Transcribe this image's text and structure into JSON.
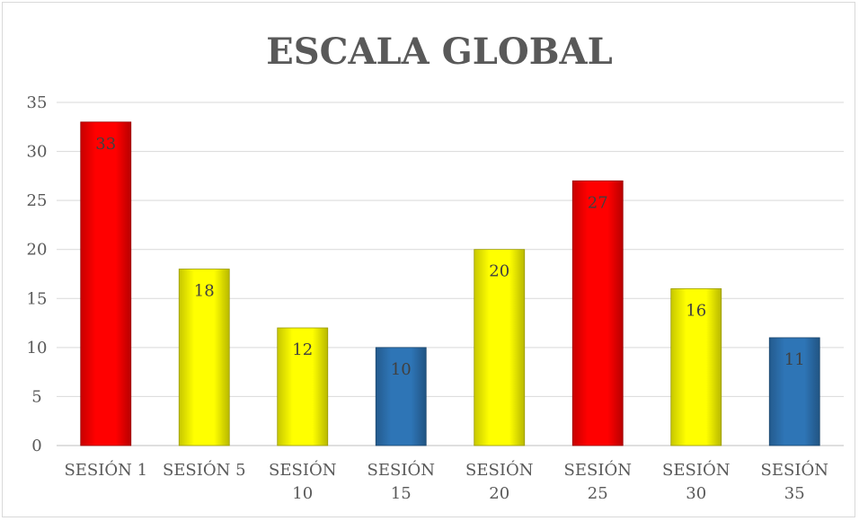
{
  "chart_data": {
    "type": "bar",
    "title": "ESCALA GLOBAL",
    "xlabel": "",
    "ylabel": "",
    "ylim": [
      0,
      35
    ],
    "yticks": [
      0,
      5,
      10,
      15,
      20,
      25,
      30,
      35
    ],
    "grid": true,
    "categories": [
      [
        "SESIÓN 1"
      ],
      [
        "SESIÓN 5"
      ],
      [
        "SESIÓN",
        "10"
      ],
      [
        "SESIÓN",
        "15"
      ],
      [
        "SESIÓN",
        "20"
      ],
      [
        "SESIÓN",
        "25"
      ],
      [
        "SESIÓN",
        "30"
      ],
      [
        "SESIÓN",
        "35"
      ]
    ],
    "values": [
      33,
      18,
      12,
      10,
      20,
      27,
      16,
      11
    ],
    "bar_colors": [
      "#ff0000",
      "#ffff00",
      "#ffff00",
      "#2e75b6",
      "#ffff00",
      "#ff0000",
      "#ffff00",
      "#2e75b6"
    ],
    "data_labels": [
      "33",
      "18",
      "12",
      "10",
      "20",
      "27",
      "16",
      "11"
    ]
  }
}
